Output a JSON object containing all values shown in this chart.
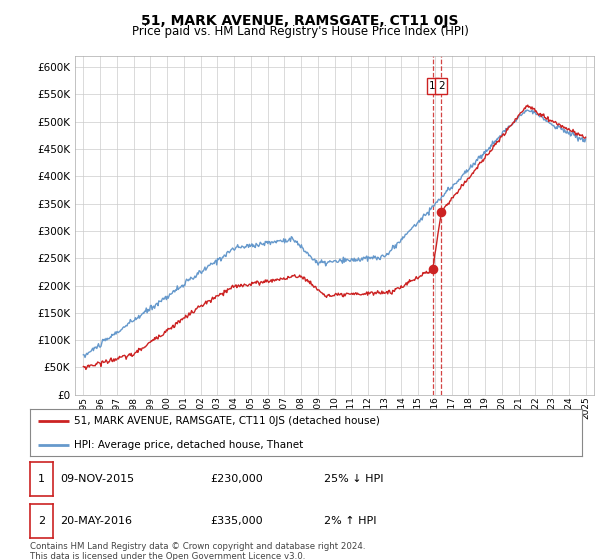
{
  "title": "51, MARK AVENUE, RAMSGATE, CT11 0JS",
  "subtitle": "Price paid vs. HM Land Registry's House Price Index (HPI)",
  "ytick_values": [
    0,
    50000,
    100000,
    150000,
    200000,
    250000,
    300000,
    350000,
    400000,
    450000,
    500000,
    550000,
    600000
  ],
  "ylabel_ticks": [
    "£0",
    "£50K",
    "£100K",
    "£150K",
    "£200K",
    "£250K",
    "£300K",
    "£350K",
    "£400K",
    "£450K",
    "£500K",
    "£550K",
    "£600K"
  ],
  "hpi_color": "#6699cc",
  "price_color": "#cc2222",
  "sale1_date": 2015.86,
  "sale1_price": 230000,
  "sale2_date": 2016.38,
  "sale2_price": 335000,
  "legend_label1": "51, MARK AVENUE, RAMSGATE, CT11 0JS (detached house)",
  "legend_label2": "HPI: Average price, detached house, Thanet",
  "table_row1_num": "1",
  "table_row1_date": "09-NOV-2015",
  "table_row1_price": "£230,000",
  "table_row1_hpi": "25% ↓ HPI",
  "table_row2_num": "2",
  "table_row2_date": "20-MAY-2016",
  "table_row2_price": "£335,000",
  "table_row2_hpi": "2% ↑ HPI",
  "footnote": "Contains HM Land Registry data © Crown copyright and database right 2024.\nThis data is licensed under the Open Government Licence v3.0.",
  "vline_color": "#cc2222",
  "box_color": "#cc2222",
  "background_color": "#ffffff",
  "grid_color": "#cccccc",
  "ylim_max": 620000,
  "xlim_min": 1994.5,
  "xlim_max": 2025.5
}
